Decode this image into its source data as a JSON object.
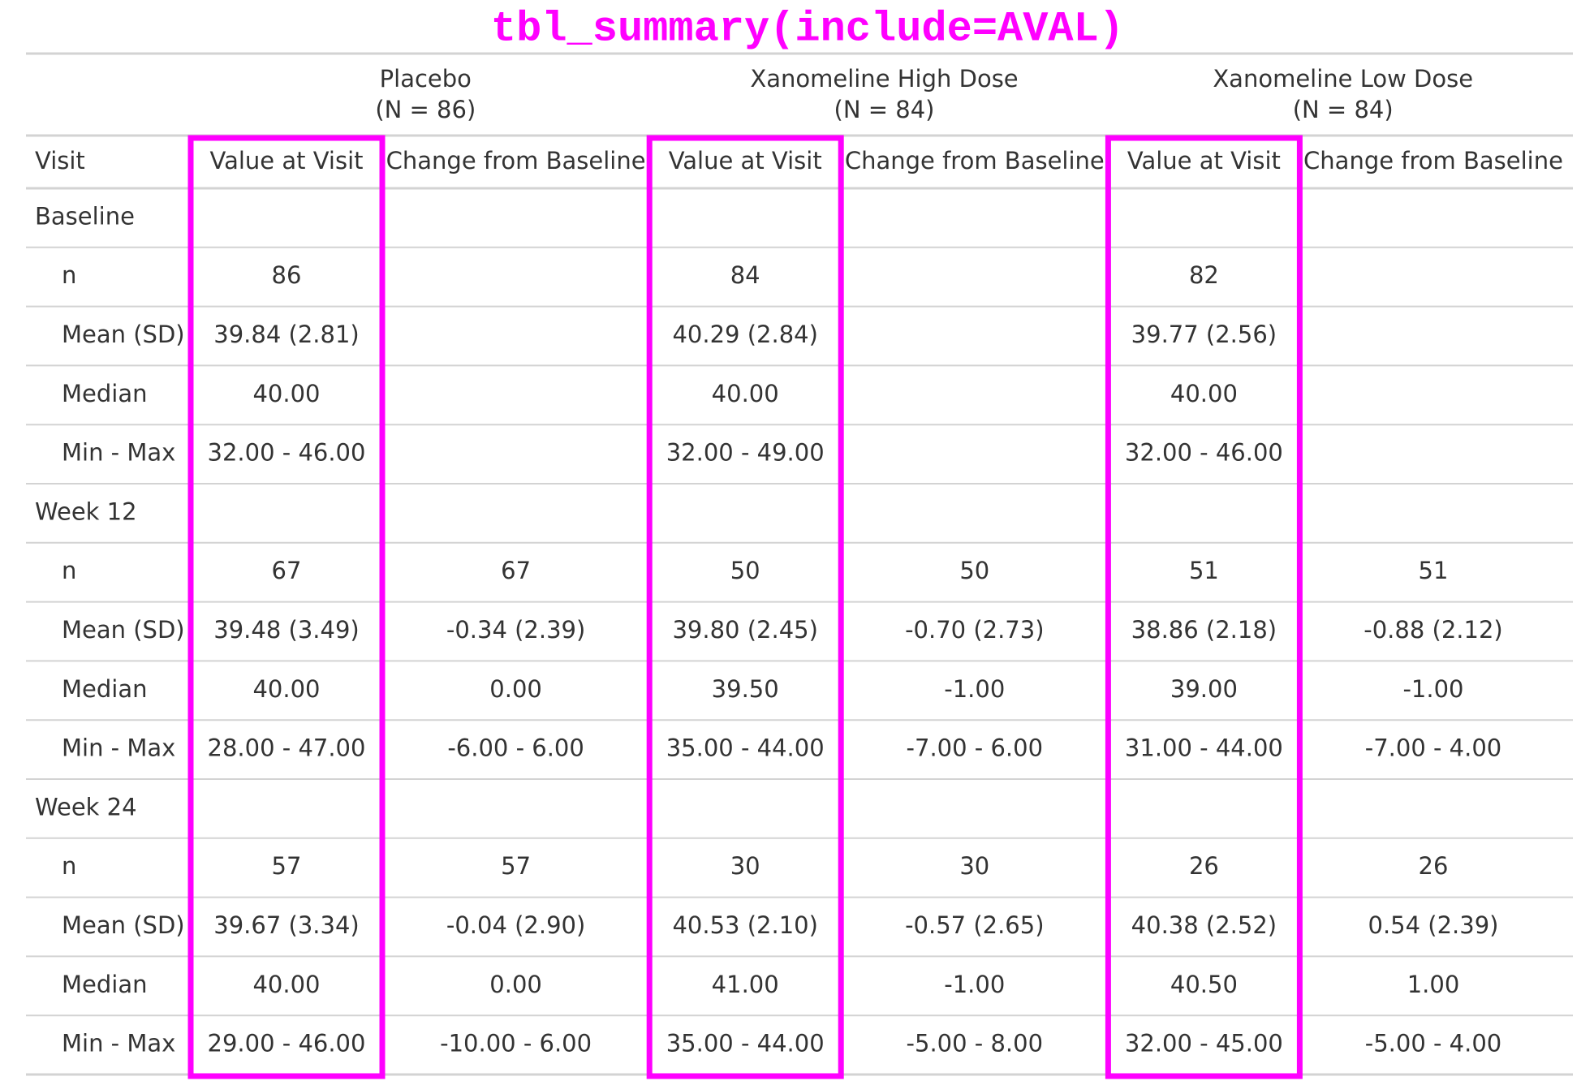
{
  "title": "tbl_summary(include=AVAL)",
  "table": {
    "spanners": [
      {
        "label": "Placebo",
        "n": "(N = 86)"
      },
      {
        "label": "Xanomeline High Dose",
        "n": "(N = 84)"
      },
      {
        "label": "Xanomeline Low Dose",
        "n": "(N = 84)"
      }
    ],
    "columns": [
      "Visit",
      "Value at Visit",
      "Change from Baseline",
      "Value at Visit",
      "Change from Baseline",
      "Value at Visit",
      "Change from Baseline"
    ],
    "groups": [
      {
        "label": "Baseline",
        "rows": [
          [
            "n",
            "86",
            null,
            "84",
            null,
            "82",
            null
          ],
          [
            "Mean (SD)",
            "39.84 (2.81)",
            null,
            "40.29 (2.84)",
            null,
            "39.77 (2.56)",
            null
          ],
          [
            "Median",
            "40.00",
            null,
            "40.00",
            null,
            "40.00",
            null
          ],
          [
            "Min - Max",
            "32.00 - 46.00",
            null,
            "32.00 - 49.00",
            null,
            "32.00 - 46.00",
            null
          ]
        ]
      },
      {
        "label": "Week 12",
        "rows": [
          [
            "n",
            "67",
            "67",
            "50",
            "50",
            "51",
            "51"
          ],
          [
            "Mean (SD)",
            "39.48 (3.49)",
            "-0.34 (2.39)",
            "39.80 (2.45)",
            "-0.70 (2.73)",
            "38.86 (2.18)",
            "-0.88 (2.12)"
          ],
          [
            "Median",
            "40.00",
            "0.00",
            "39.50",
            "-1.00",
            "39.00",
            "-1.00"
          ],
          [
            "Min - Max",
            "28.00 - 47.00",
            "-6.00 - 6.00",
            "35.00 - 44.00",
            "-7.00 - 6.00",
            "31.00 - 44.00",
            "-7.00 - 4.00"
          ]
        ]
      },
      {
        "label": "Week 24",
        "rows": [
          [
            "n",
            "57",
            "57",
            "30",
            "30",
            "26",
            "26"
          ],
          [
            "Mean (SD)",
            "39.67 (3.34)",
            "-0.04 (2.90)",
            "40.53 (2.10)",
            "-0.57 (2.65)",
            "40.38 (2.52)",
            "0.54 (2.39)"
          ],
          [
            "Median",
            "40.00",
            "0.00",
            "41.00",
            "-1.00",
            "40.50",
            "1.00"
          ],
          [
            "Min - Max",
            "29.00 - 46.00",
            "-10.00 - 6.00",
            "35.00 - 44.00",
            "-5.00 - 8.00",
            "32.00 - 45.00",
            "-5.00 - 4.00"
          ]
        ]
      }
    ]
  }
}
